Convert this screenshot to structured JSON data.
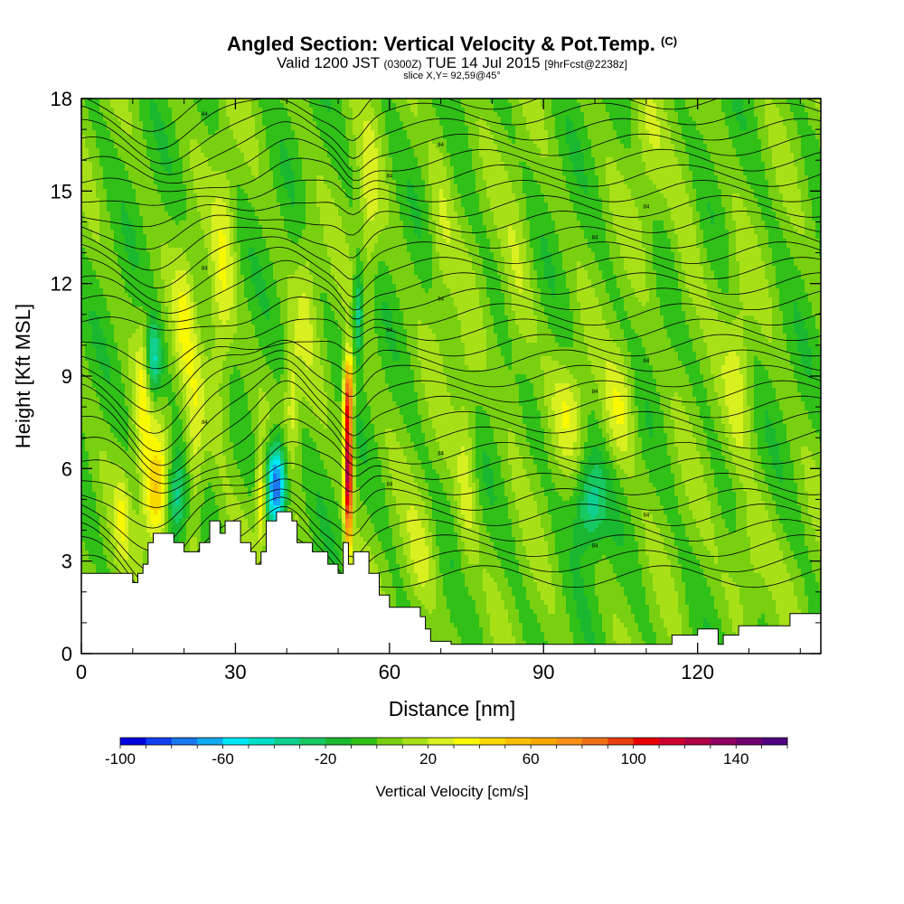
{
  "title": {
    "main": "Angled Section: Vertical Velocity & Pot.Temp.",
    "main_suffix": "(C)",
    "valid_prefix": "Valid 1200 JST",
    "valid_zulu": "(0300Z)",
    "valid_date": "TUE 14 Jul 2015",
    "forecast": "[9hrFcst@2238z]",
    "slice": "slice X,Y= 92,59@45°"
  },
  "chart_data": {
    "type": "heatmap",
    "xlabel": "Distance [nm]",
    "ylabel": "Height [Kft MSL]",
    "xlim": [
      0,
      144
    ],
    "ylim": [
      0,
      18
    ],
    "x_ticks": [
      0,
      30,
      60,
      90,
      120
    ],
    "y_ticks": [
      0,
      3,
      6,
      9,
      12,
      15,
      18
    ],
    "colorbar": {
      "label": "Vertical Velocity [cm/s]",
      "range": [
        -100,
        160
      ],
      "tick_values": [
        -100,
        -60,
        -20,
        20,
        60,
        100,
        140
      ],
      "tick_labels": [
        "-100",
        "-60",
        "-20",
        "20",
        "60",
        "100",
        "140"
      ],
      "colors": [
        "#0000e0",
        "#1040f0",
        "#1a78f0",
        "#10a8f0",
        "#00e8f8",
        "#00e0c8",
        "#10d090",
        "#18c860",
        "#1ab830",
        "#30c018",
        "#78d010",
        "#a8e018",
        "#d8f020",
        "#f8f800",
        "#f8d800",
        "#f8c000",
        "#f8a800",
        "#f89018",
        "#f07018",
        "#e84010",
        "#e80000",
        "#d00030",
        "#b00048",
        "#900060",
        "#700070",
        "#500080"
      ]
    },
    "terrain_kft": [
      [
        0,
        2.6
      ],
      [
        10,
        2.6
      ],
      [
        10,
        2.3
      ],
      [
        11,
        2.3
      ],
      [
        11,
        2.6
      ],
      [
        12,
        2.6
      ],
      [
        12,
        2.9
      ],
      [
        13,
        2.9
      ],
      [
        13,
        3.6
      ],
      [
        14,
        3.6
      ],
      [
        14,
        3.9
      ],
      [
        18,
        3.9
      ],
      [
        18,
        3.6
      ],
      [
        20,
        3.6
      ],
      [
        20,
        3.3
      ],
      [
        23,
        3.3
      ],
      [
        23,
        3.6
      ],
      [
        25,
        3.6
      ],
      [
        25,
        4.3
      ],
      [
        27,
        4.3
      ],
      [
        27,
        3.9
      ],
      [
        28,
        3.9
      ],
      [
        28,
        4.3
      ],
      [
        31,
        4.3
      ],
      [
        31,
        3.6
      ],
      [
        33,
        3.6
      ],
      [
        33,
        3.3
      ],
      [
        34,
        3.3
      ],
      [
        34,
        2.9
      ],
      [
        35,
        2.9
      ],
      [
        35,
        3.3
      ],
      [
        36,
        3.3
      ],
      [
        36,
        4.3
      ],
      [
        38,
        4.3
      ],
      [
        38,
        4.6
      ],
      [
        41,
        4.6
      ],
      [
        41,
        4.3
      ],
      [
        42,
        4.3
      ],
      [
        42,
        3.6
      ],
      [
        45,
        3.6
      ],
      [
        45,
        3.3
      ],
      [
        48,
        3.3
      ],
      [
        48,
        2.9
      ],
      [
        50,
        2.9
      ],
      [
        50,
        2.6
      ],
      [
        51,
        2.6
      ],
      [
        51,
        3.6
      ],
      [
        52,
        3.6
      ],
      [
        52,
        2.9
      ],
      [
        53,
        2.9
      ],
      [
        53,
        3.3
      ],
      [
        56,
        3.3
      ],
      [
        56,
        2.6
      ],
      [
        58,
        2.6
      ],
      [
        58,
        1.9
      ],
      [
        60,
        1.9
      ],
      [
        60,
        1.5
      ],
      [
        66,
        1.5
      ],
      [
        66,
        1.2
      ],
      [
        67,
        1.2
      ],
      [
        67,
        0.8
      ],
      [
        68,
        0.8
      ],
      [
        68,
        0.4
      ],
      [
        72,
        0.4
      ],
      [
        72,
        0.3
      ],
      [
        115,
        0.3
      ],
      [
        115,
        0.6
      ],
      [
        120,
        0.6
      ],
      [
        120,
        0.8
      ],
      [
        124,
        0.8
      ],
      [
        124,
        0.3
      ],
      [
        125,
        0.3
      ],
      [
        125,
        0.6
      ],
      [
        128,
        0.6
      ],
      [
        128,
        0.9
      ],
      [
        138,
        0.9
      ],
      [
        138,
        1.3
      ],
      [
        144,
        1.3
      ]
    ],
    "isentrope_labels": [
      "84",
      "84",
      "84",
      "84",
      "84",
      "84",
      "84",
      "84",
      "84",
      "84",
      "84",
      "84",
      "84",
      "84",
      "84",
      "84",
      "84",
      "84",
      "84",
      "84",
      "84",
      "84",
      "84",
      "84",
      "84",
      "84",
      "84",
      "84",
      "84",
      "84",
      "84",
      "84",
      "84"
    ]
  }
}
